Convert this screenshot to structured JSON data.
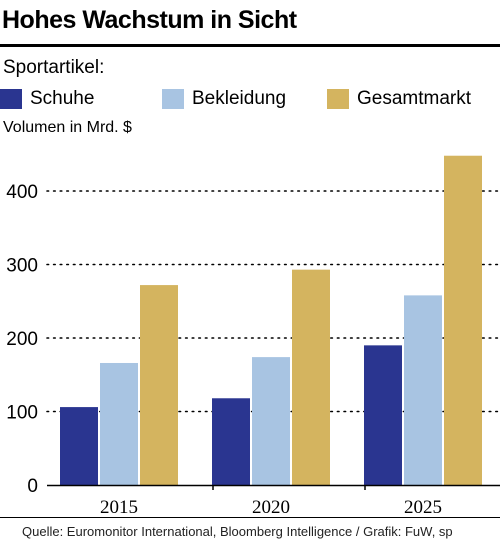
{
  "title": "Hohes Wachstum in Sicht",
  "legend_title": "Sportartikel:",
  "colors": {
    "Schuhe": "#2a3590",
    "Bekleidung": "#a8c4e2",
    "Gesamtmarkt": "#d4b45f"
  },
  "chart_data": {
    "type": "bar",
    "title": "Hohes Wachstum in Sicht",
    "ylabel": "Volumen in Mrd. $",
    "xlabel": "",
    "categories": [
      "2015",
      "2020",
      "2025"
    ],
    "series": [
      {
        "name": "Schuhe",
        "values": [
          106,
          118,
          190
        ]
      },
      {
        "name": "Bekleidung",
        "values": [
          166,
          174,
          258
        ]
      },
      {
        "name": "Gesamtmarkt",
        "values": [
          272,
          293,
          448
        ]
      }
    ],
    "ylim": [
      0,
      460
    ],
    "yticks": [
      0,
      100,
      200,
      300,
      400
    ],
    "grid": "dotted horizontal",
    "legend_position": "top-left"
  },
  "source": "Quelle: Euromonitor International, Bloomberg Intelligence / Grafik: FuW, sp"
}
